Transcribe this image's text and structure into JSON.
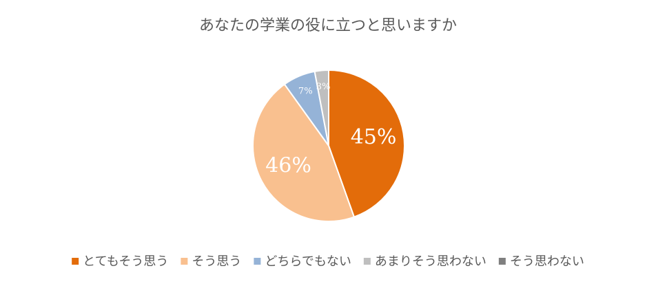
{
  "chart_data": {
    "type": "pie",
    "title": "あなたの学業の役に立つと思いますか",
    "categories": [
      "とてもそう思う",
      "そう思う",
      "どちらでもない",
      "あまりそう思わない",
      "そう思わない"
    ],
    "values": [
      45,
      46,
      7,
      3,
      0
    ],
    "value_labels": [
      "45%",
      "46%",
      "7%",
      "3%",
      null
    ],
    "colors": [
      "#e36c0a",
      "#f9c08f",
      "#95b3d7",
      "#bfbfbf",
      "#7f7f7f"
    ],
    "legend": "bottom"
  }
}
